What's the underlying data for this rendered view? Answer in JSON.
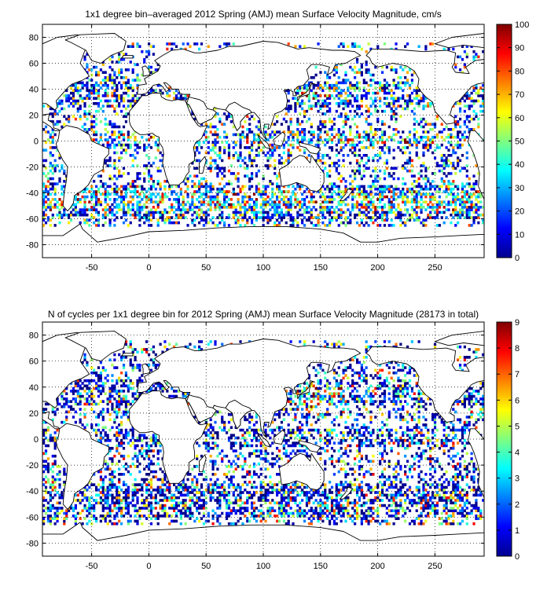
{
  "figure": {
    "panels": [
      {
        "id": "velocity",
        "title": "1x1 degree bin–averaged 2012 Spring (AMJ) mean Surface Velocity Magnitude, cm/s",
        "x_ticks": [
          -50,
          0,
          50,
          100,
          150,
          200,
          250
        ],
        "y_ticks": [
          80,
          60,
          40,
          20,
          0,
          -20,
          -40,
          -60,
          -80
        ],
        "x_range": [
          -93,
          293
        ],
        "y_range": [
          -90,
          90
        ],
        "grid": "dotted",
        "colorbar": {
          "min": 0,
          "max": 100,
          "ticks": [
            0,
            10,
            20,
            30,
            40,
            50,
            60,
            70,
            80,
            90,
            100
          ],
          "colormap": "jet"
        }
      },
      {
        "id": "cycles",
        "title": "N of cycles per 1x1 degree bin for 2012 Spring (AMJ) mean Surface Velocity Magnitude (28173 in total)",
        "x_ticks": [
          -50,
          0,
          50,
          100,
          150,
          200,
          250
        ],
        "y_ticks": [
          80,
          60,
          40,
          20,
          0,
          -20,
          -40,
          -60,
          -80
        ],
        "x_range": [
          -93,
          293
        ],
        "y_range": [
          -90,
          90
        ],
        "grid": "dotted",
        "colorbar": {
          "min": 0,
          "max": 9,
          "ticks": [
            0,
            1,
            2,
            3,
            4,
            5,
            6,
            7,
            8,
            9
          ],
          "colormap": "jet"
        }
      }
    ]
  },
  "colors": {
    "land": "#ffffff",
    "coastline": "#000000",
    "grid": "#000000"
  }
}
